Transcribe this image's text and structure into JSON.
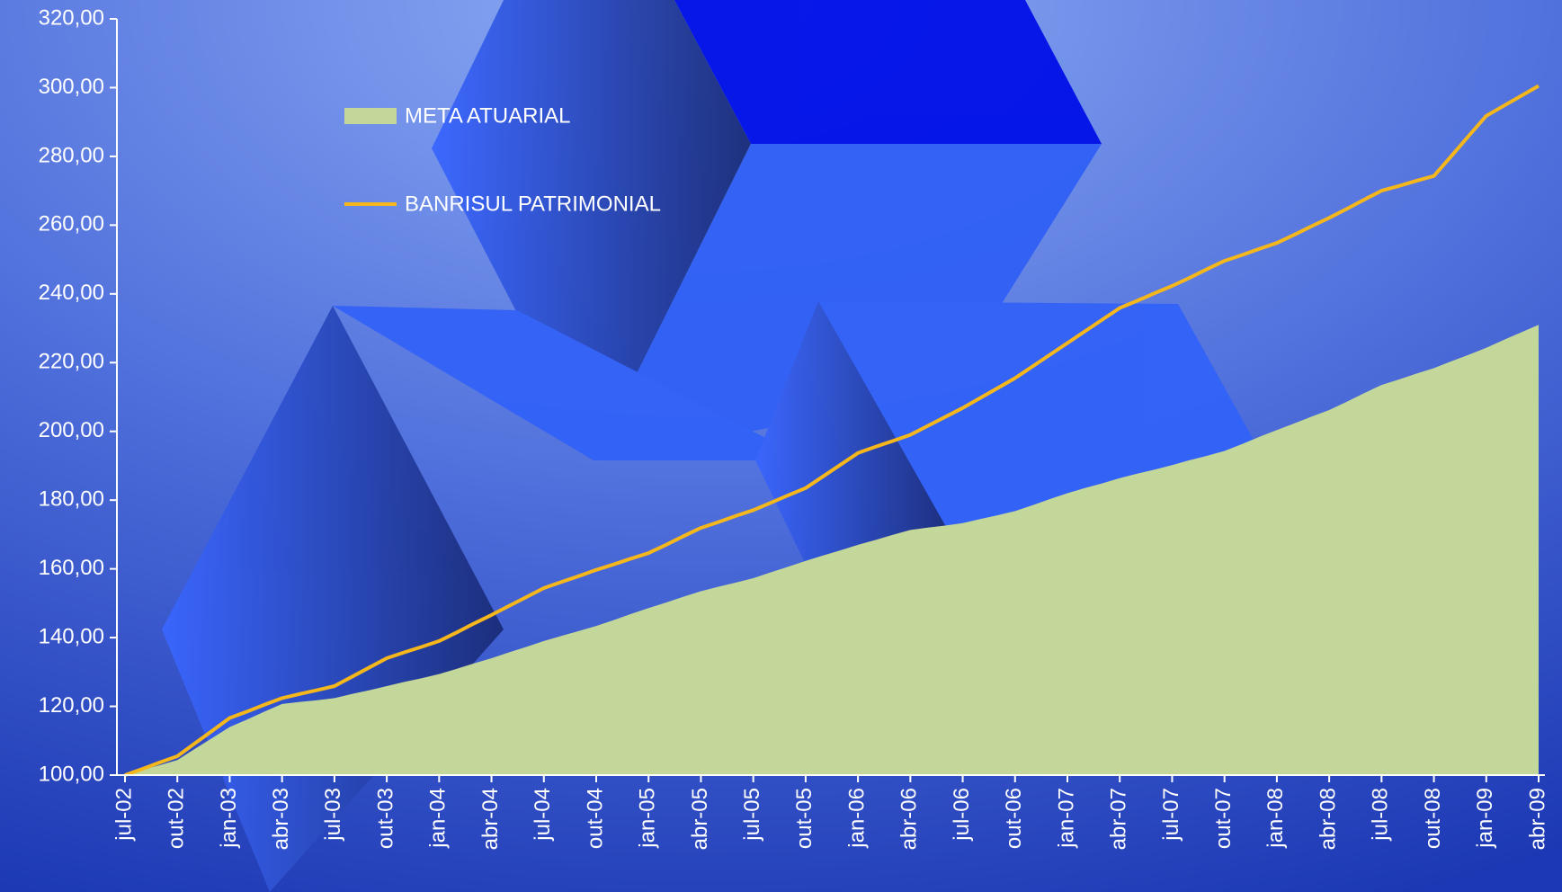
{
  "chart_data": {
    "type": "area-line",
    "categories": [
      "jul-02",
      null,
      null,
      "out-02",
      null,
      null,
      "jan-03",
      null,
      null,
      "abr-03",
      null,
      null,
      "jul-03",
      null,
      null,
      "out-03",
      null,
      null,
      "jan-04",
      null,
      null,
      "abr-04",
      null,
      null,
      "jul-04",
      null,
      null,
      "out-04",
      null,
      null,
      "jan-05",
      null,
      null,
      "abr-05",
      null,
      null,
      "jul-05",
      null,
      null,
      "out-05",
      null,
      null,
      "jan-06",
      null,
      null,
      "abr-06",
      null,
      null,
      "jul-06",
      null,
      null,
      "out-06",
      null,
      null,
      "jan-07",
      null,
      null,
      "abr-07",
      null,
      null,
      "jul-07",
      null,
      null,
      "out-07",
      null,
      null,
      "jan-08",
      null,
      null,
      "abr-08",
      null,
      null,
      "jul-08",
      null,
      null,
      "out-08",
      null,
      null,
      "jan-09",
      null,
      null,
      "abr-09"
    ],
    "series": [
      {
        "name": "META ATUARIAL",
        "color": "#c4d79b",
        "kind": "area",
        "values": [
          100,
          101.5,
          102.9,
          104.4,
          107.6,
          110.8,
          114,
          116.2,
          118.5,
          120.7,
          121.3,
          121.8,
          122.4,
          123.6,
          124.7,
          125.9,
          127.1,
          128.2,
          129.4,
          130.9,
          132.5,
          134,
          135.7,
          137.3,
          139,
          140.5,
          141.9,
          143.4,
          145.1,
          146.9,
          148.6,
          150.2,
          151.9,
          153.5,
          154.8,
          156,
          157.3,
          159,
          160.6,
          162.3,
          163.9,
          165.4,
          167,
          168.4,
          169.9,
          171.3,
          172,
          172.6,
          173.3,
          174.5,
          175.6,
          176.8,
          178.5,
          180.3,
          182,
          183.5,
          184.9,
          186.4,
          187.7,
          188.9,
          190.2,
          191.6,
          192.9,
          194.3,
          196.3,
          198.4,
          200.4,
          202.3,
          204.3,
          206.2,
          208.6,
          211.1,
          213.5,
          215.1,
          216.8,
          218.4,
          220.4,
          222.3,
          224.3,
          226.6,
          228.8,
          231
        ]
      },
      {
        "name": "BANRISUL PATRIMONIAL",
        "color": "#f5b71c",
        "kind": "line",
        "values": [
          100,
          101.8,
          103.7,
          105.5,
          109.2,
          112.9,
          116.6,
          118.5,
          120.5,
          122.4,
          123.6,
          124.7,
          125.9,
          128.6,
          131.3,
          134,
          135.7,
          137.3,
          139,
          141.5,
          144.1,
          146.6,
          149.2,
          151.8,
          154.4,
          156.2,
          157.9,
          159.7,
          161.3,
          163,
          164.6,
          167,
          169.5,
          171.9,
          173.6,
          175.4,
          177.1,
          179.2,
          181.4,
          183.5,
          186.9,
          190.3,
          193.7,
          195.5,
          197.2,
          199,
          201.6,
          204.2,
          206.8,
          209.7,
          212.6,
          215.5,
          218.9,
          222.3,
          225.7,
          229.1,
          232.5,
          235.9,
          238,
          240.2,
          242.3,
          244.7,
          247.2,
          249.6,
          251.3,
          253.1,
          254.8,
          257.2,
          259.7,
          262.1,
          264.7,
          267.4,
          270,
          271.4,
          272.9,
          274.3,
          280.1,
          286,
          291.8,
          294.7,
          297.6,
          300.5
        ]
      }
    ],
    "ylim": [
      100,
      320
    ],
    "yticks": [
      {
        "value": 100,
        "label": "100,00"
      },
      {
        "value": 120,
        "label": "120,00"
      },
      {
        "value": 140,
        "label": "140,00"
      },
      {
        "value": 160,
        "label": "160,00"
      },
      {
        "value": 180,
        "label": "180,00"
      },
      {
        "value": 200,
        "label": "200,00"
      },
      {
        "value": 220,
        "label": "220,00"
      },
      {
        "value": 240,
        "label": "240,00"
      },
      {
        "value": 260,
        "label": "260,00"
      },
      {
        "value": 280,
        "label": "280,00"
      },
      {
        "value": 300,
        "label": "300,00"
      },
      {
        "value": 320,
        "label": "320,00"
      }
    ]
  }
}
